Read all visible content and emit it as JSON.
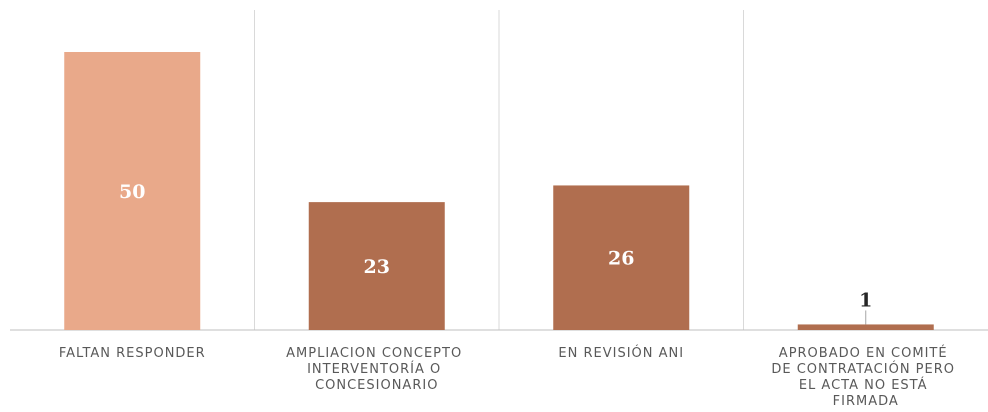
{
  "chart_data": {
    "type": "bar",
    "categories": [
      "FALTAN RESPONDER",
      "AMPLIACION CONCEPTO INTERVENTORÍA O CONCESIONARIO",
      "EN REVISIÓN ANI",
      "APROBADO EN COMITÉ DE CONTRATACIÓN PERO EL ACTA NO ESTÁ FIRMADA"
    ],
    "values": [
      50,
      23,
      26,
      1
    ],
    "colors": [
      "#e9a98a",
      "#b06e4f",
      "#b06e4f",
      "#b06e4f"
    ]
  }
}
